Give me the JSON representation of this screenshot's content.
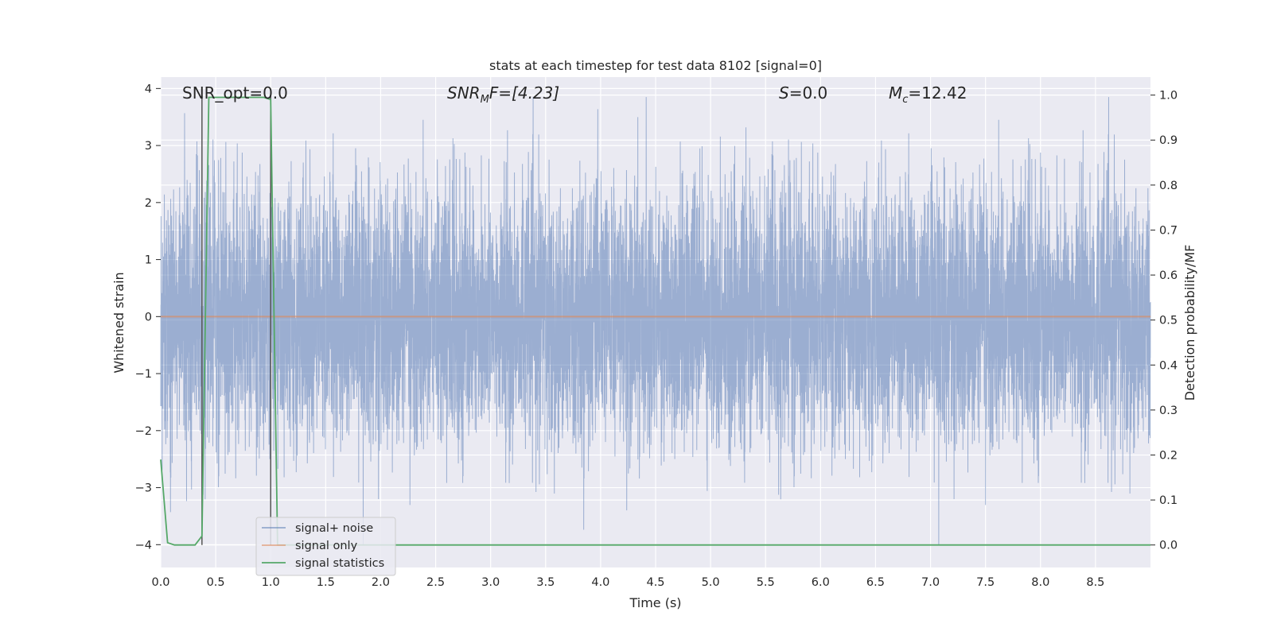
{
  "chart_data": {
    "type": "line",
    "title": "stats at each timestep for test data 8102 [signal=0]",
    "xlabel": "Time (s)",
    "ylabel": "Whitened strain",
    "y2label": "Detection probability/MF",
    "xlim": [
      0.0,
      9.0
    ],
    "ylim": [
      -4.4,
      4.2
    ],
    "y2lim": [
      -0.05,
      1.04
    ],
    "xticks": [
      "0.0",
      "0.5",
      "1.0",
      "1.5",
      "2.0",
      "2.5",
      "3.0",
      "3.5",
      "4.0",
      "4.5",
      "5.0",
      "5.5",
      "6.0",
      "6.5",
      "7.0",
      "7.5",
      "8.0",
      "8.5"
    ],
    "yticks": [
      "4",
      "3",
      "2",
      "1",
      "0",
      "−1",
      "−2",
      "−3",
      "−4"
    ],
    "y2ticks": [
      "1.0",
      "0.9",
      "0.8",
      "0.7",
      "0.6",
      "0.5",
      "0.4",
      "0.3",
      "0.2",
      "0.1",
      "0.0"
    ],
    "grid": true,
    "legend_position": "lower-left",
    "annotations": {
      "snr_opt": "SNR_opt=0.0",
      "snr_mf_prefix": "SNR",
      "snr_mf_sub": "M",
      "snr_mf_suffix": "F=[4.23]",
      "s_prefix": "S",
      "s_suffix": "=0.0",
      "mc_prefix": "M",
      "mc_sub": "c",
      "mc_suffix": "=12.42"
    },
    "vertical_markers_x": [
      0.375,
      1.0
    ],
    "series": [
      {
        "name": "signal+ noise",
        "color": "#4c72b0",
        "axis": "left",
        "description_values": "dense whitened noise, approx -3.8 to 3.8 over 0.0-9.0 s"
      },
      {
        "name": "signal only",
        "color": "#dd8452",
        "axis": "left",
        "x": [
          0.0,
          9.0
        ],
        "y": [
          0.0,
          0.0
        ]
      },
      {
        "name": "signal statistics",
        "color": "#55a868",
        "axis": "right",
        "x": [
          0.0,
          0.0625,
          0.125,
          0.1875,
          0.25,
          0.3125,
          0.375,
          0.4375,
          0.5,
          0.5625,
          0.625,
          0.6875,
          0.75,
          0.8125,
          0.875,
          0.9375,
          1.0,
          1.0625,
          1.125,
          1.1875,
          9.0
        ],
        "y": [
          0.19,
          0.005,
          0.0,
          0.0,
          0.0,
          0.0,
          0.02,
          0.995,
          0.995,
          0.995,
          0.995,
          0.995,
          0.995,
          0.995,
          0.995,
          0.995,
          0.99,
          0.0,
          0.0,
          0.0,
          0.0
        ]
      }
    ]
  }
}
